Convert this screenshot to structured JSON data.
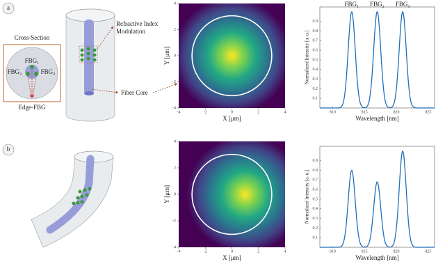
{
  "labels": {
    "panel_a": "a",
    "panel_b": "b",
    "cross_section": "Cross-Section",
    "fbg1": "FBG₁",
    "fbg2": "FBG₂",
    "fbg3": "FBG₃",
    "edge_fbg": "Edge-FBG",
    "modulation": [
      "Refractive Index",
      "Modulation"
    ],
    "fiber_core": "Fiber Core"
  },
  "chart_data": [
    {
      "type": "heatmap",
      "xlabel": "X [μm]",
      "ylabel": "Y [μm]",
      "xlim": [
        -4,
        4
      ],
      "ylim": [
        -4,
        4
      ],
      "xticks": [
        -4,
        -2,
        0,
        2,
        4
      ],
      "yticks": [
        -4,
        -2,
        0,
        2,
        4
      ],
      "peak": [
        0,
        0
      ],
      "core_radius": 3
    },
    {
      "type": "spectrum",
      "xlabel": "Wavelength [nm]",
      "ylabel": "Normalized Intensity [a. u.]",
      "xlim": [
        808,
        826
      ],
      "ylim": [
        0,
        1.05
      ],
      "xticks": [
        810,
        815,
        820,
        825
      ],
      "yticks": [
        0.1,
        0.2,
        0.3,
        0.4,
        0.5,
        0.6,
        0.7,
        0.8,
        0.9
      ],
      "color": "#1f6fb8",
      "fwhm": 1.3,
      "x": [
        813,
        817,
        821
      ],
      "values": [
        1,
        1,
        1
      ],
      "annotations": [
        "FBG₁",
        "FBG₂",
        "FBG₃"
      ]
    },
    {
      "type": "heatmap",
      "xlabel": "X [μm]",
      "ylabel": "Y [μm]",
      "xlim": [
        -4,
        4
      ],
      "ylim": [
        -4,
        4
      ],
      "xticks": [
        -4,
        -2,
        0,
        2,
        4
      ],
      "yticks": [
        -4,
        -2,
        0,
        2,
        4
      ],
      "peak": [
        1,
        0
      ],
      "core_radius": 3
    },
    {
      "type": "spectrum",
      "xlabel": "Wavelength [nm]",
      "ylabel": "Normalized Intensity [a. u.]",
      "xlim": [
        808,
        826
      ],
      "ylim": [
        0,
        1.05
      ],
      "xticks": [
        810,
        815,
        820,
        825
      ],
      "yticks": [
        0.1,
        0.2,
        0.3,
        0.4,
        0.5,
        0.6,
        0.7,
        0.8,
        0.9
      ],
      "color": "#1f6fb8",
      "fwhm": 1.3,
      "x": [
        813,
        817,
        821
      ],
      "values": [
        0.8,
        0.68,
        1
      ]
    }
  ]
}
